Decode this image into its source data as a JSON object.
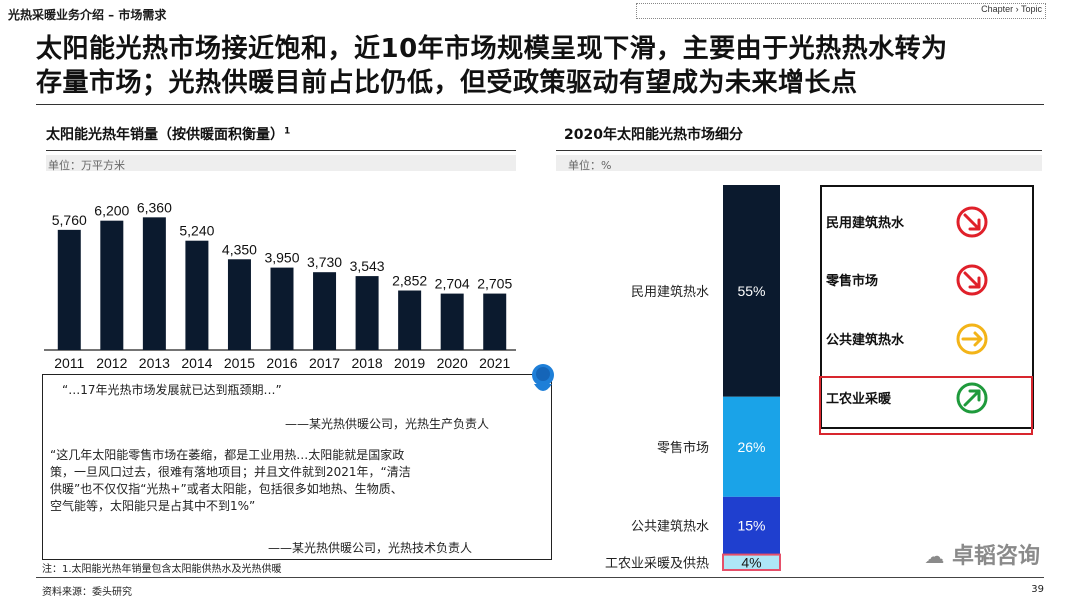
{
  "header": {
    "section_title": "光热采暖业务介绍 – 市场需求",
    "chapter_label": "Chapter › Topic"
  },
  "headline": {
    "line1": "太阳能光热市场接近饱和，近10年市场规模呈现下滑，主要由于光热热水转为",
    "line2": "存量市场；光热供暖目前占比仍低，但受政策驱动有望成为未来增长点"
  },
  "left_panel": {
    "title": "太阳能光热年销量（按供暖面积衡量）",
    "title_sup": "1",
    "unit": "单位：万平方米"
  },
  "right_panel": {
    "title": "2020年太阳能光热市场细分",
    "unit": "单位：%"
  },
  "chart_data": [
    {
      "type": "bar",
      "categories": [
        "2011",
        "2012",
        "2013",
        "2014",
        "2015",
        "2016",
        "2017",
        "2018",
        "2019",
        "2020",
        "2021"
      ],
      "values": [
        5760,
        6200,
        6360,
        5240,
        4350,
        3950,
        3730,
        3543,
        2852,
        2704,
        2705
      ],
      "value_labels": [
        "5,760",
        "6,200",
        "6,360",
        "5,240",
        "4,350",
        "3,950",
        "3,730",
        "3,543",
        "2,852",
        "2,704",
        "2,705"
      ],
      "title": "太阳能光热年销量（按供暖面积衡量）",
      "ylabel": "单位：万平方米",
      "ylim": [
        0,
        7000
      ],
      "color": "#0b1a2e"
    },
    {
      "type": "bar",
      "stacked": true,
      "title": "2020年太阳能光热市场细分",
      "ylabel": "单位：%",
      "series": [
        {
          "name": "民用建筑热水",
          "value": 55,
          "label": "55%",
          "color": "#0b1a2e"
        },
        {
          "name": "零售市场",
          "value": 26,
          "label": "26%",
          "color": "#1aa3e8"
        },
        {
          "name": "公共建筑热水",
          "value": 15,
          "label": "15%",
          "color": "#1f3fcf"
        },
        {
          "name": "工农业采暖及供热",
          "value": 4,
          "label": "4%",
          "color": "#aee6f7"
        }
      ],
      "ylim": [
        0,
        100
      ]
    }
  ],
  "legend": {
    "items": [
      {
        "label": "民用建筑热水",
        "trend": "down",
        "color": "#e0202a",
        "icon": "arrow-down-right-icon"
      },
      {
        "label": "零售市场",
        "trend": "down",
        "color": "#e0202a",
        "icon": "arrow-down-right-icon"
      },
      {
        "label": "公共建筑热水",
        "trend": "flat",
        "color": "#f3b418",
        "icon": "arrow-right-icon"
      },
      {
        "label": "工农业采暖",
        "trend": "up",
        "color": "#1f9a3c",
        "icon": "arrow-up-right-icon"
      }
    ]
  },
  "quotes": {
    "q1": "“…17年光热市场发展就已达到瓶颈期…”",
    "q1_source": "——某光热供暖公司，光热生产负责人",
    "q2_line1": "“这几年太阳能零售市场在萎缩，都是工业用热…太阳能就是国家政",
    "q2_line2": "策，一旦风口过去，很难有落地项目；并且文件就到2021年，“清洁",
    "q2_line3": "供暖”也不仅仅指“光热+”或者太阳能，包括很多如地热、生物质、",
    "q2_line4": "空气能等，太阳能只是占其中不到1%”",
    "q2_source": "——某光热供暖公司，光热技术负责人"
  },
  "footer": {
    "note": "注：1.太阳能光热年销量包含太阳能供热水及光热供暖",
    "source": "资料来源：委头研究",
    "page": "39",
    "watermark": "卓韬咨询"
  }
}
